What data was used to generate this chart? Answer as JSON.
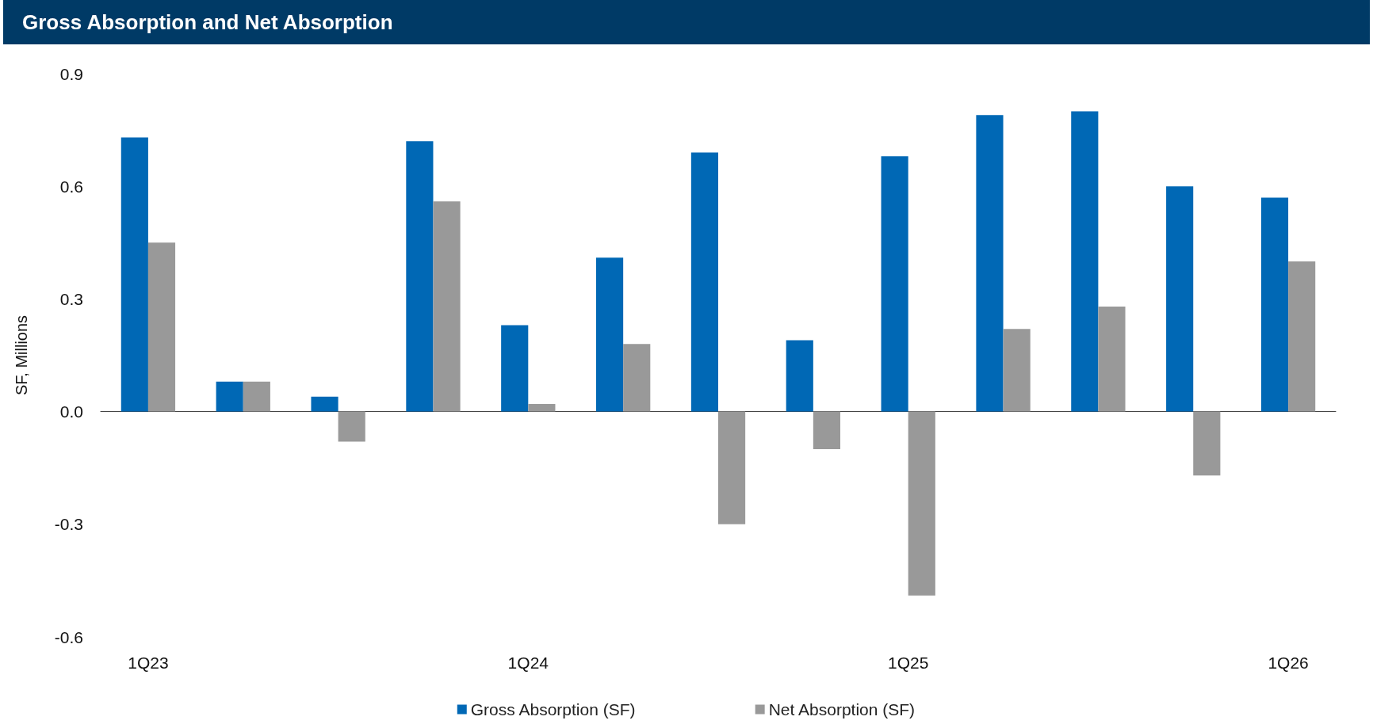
{
  "chart_data": {
    "type": "bar",
    "title": "Gross Absorption and Net Absorption",
    "ylabel": "SF, Millions",
    "categories": [
      "1Q23",
      null,
      null,
      null,
      "1Q24",
      null,
      null,
      null,
      "1Q25",
      null,
      null,
      null,
      "1Q26"
    ],
    "series": [
      {
        "name": "Gross Absorption (SF)",
        "color": "#0068b5",
        "values": [
          0.73,
          0.08,
          0.04,
          0.72,
          0.23,
          0.41,
          0.69,
          0.19,
          0.68,
          0.79,
          0.8,
          0.6,
          0.57
        ]
      },
      {
        "name": "Net Absorption (SF)",
        "color": "#999999",
        "values": [
          0.45,
          0.08,
          -0.08,
          0.56,
          0.02,
          0.18,
          -0.3,
          -0.1,
          -0.49,
          0.22,
          0.28,
          -0.17,
          0.4
        ]
      }
    ],
    "ylim": [
      -0.6,
      0.9
    ],
    "yticks": [
      -0.6,
      -0.3,
      {
        "value": 0,
        "label": "0.0"
      },
      0.3,
      0.6,
      0.9
    ],
    "legend": "bottom"
  }
}
